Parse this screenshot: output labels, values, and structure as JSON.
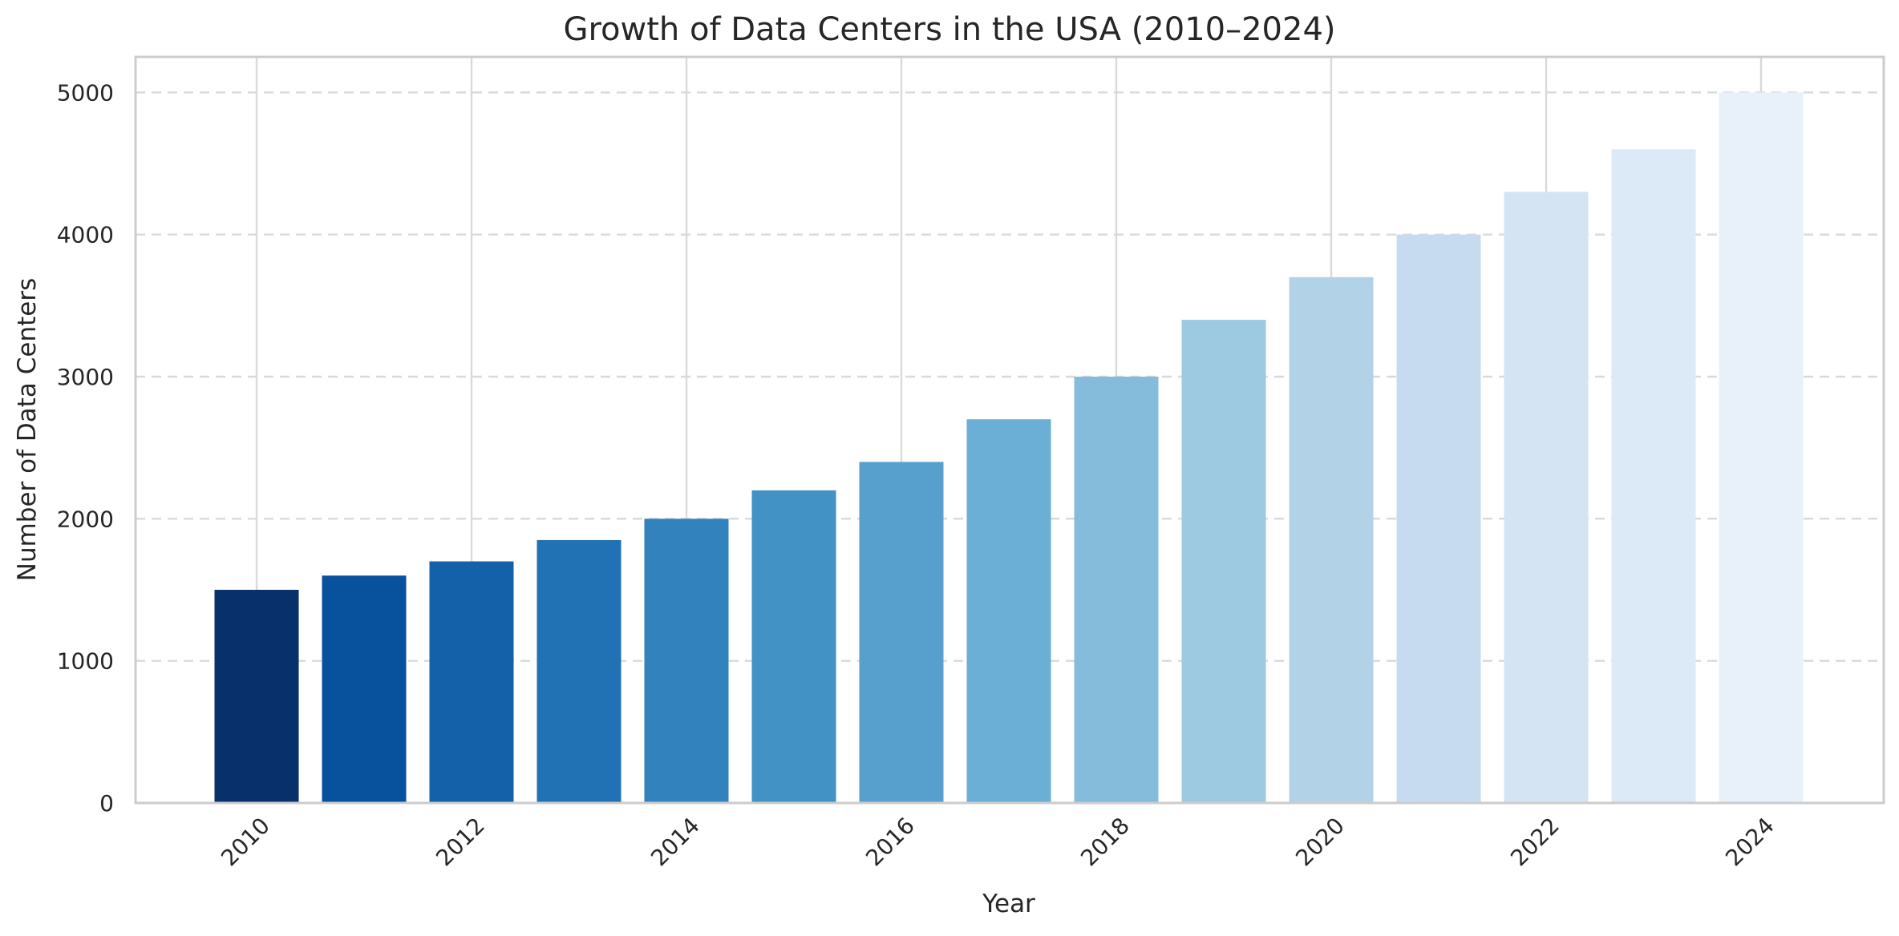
{
  "chart_data": {
    "type": "bar",
    "title": "Growth of Data Centers in the USA (2010–2024)",
    "xlabel": "Year",
    "ylabel": "Number of Data Centers",
    "categories": [
      "2010",
      "2011",
      "2012",
      "2013",
      "2014",
      "2015",
      "2016",
      "2017",
      "2018",
      "2019",
      "2020",
      "2021",
      "2022",
      "2023",
      "2024"
    ],
    "values": [
      1500,
      1600,
      1700,
      1850,
      2000,
      2200,
      2400,
      2700,
      3000,
      3400,
      3700,
      4000,
      4300,
      4600,
      5000
    ],
    "colors": [
      "#08306b",
      "#08519c",
      "#1561a9",
      "#2171b5",
      "#3282be",
      "#4292c6",
      "#57a0ce",
      "#6baed6",
      "#85bcdc",
      "#9ecae1",
      "#b2d2e8",
      "#c6dbef",
      "#d4e4f3",
      "#dce9f6",
      "#e8f1fa"
    ],
    "ylim": [
      0,
      5250
    ],
    "yticks": [
      0,
      1000,
      2000,
      3000,
      4000,
      5000
    ],
    "xticks": [
      "2010",
      "2012",
      "2014",
      "2016",
      "2018",
      "2020",
      "2022",
      "2024"
    ],
    "grid": true,
    "grid_style": "dashed horizontal, solid vertical"
  }
}
